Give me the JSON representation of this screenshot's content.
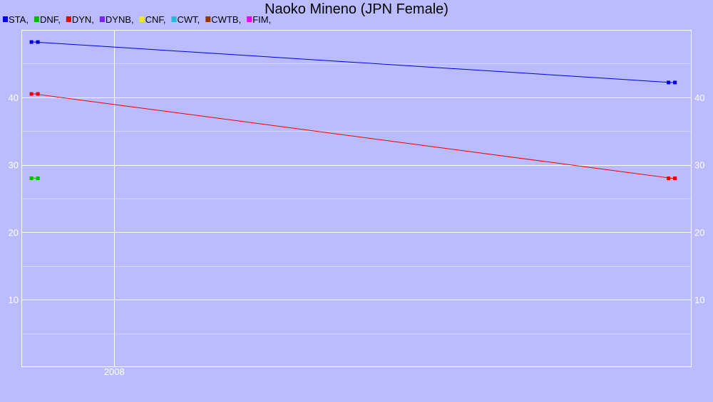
{
  "chart_data": {
    "type": "line",
    "title": "Naoko Mineno (JPN Female)",
    "xlabel": "",
    "ylabel": "",
    "x_ticks": [
      {
        "label": "2008",
        "value": 2008.0
      }
    ],
    "xlim": [
      2007.3,
      2012.35
    ],
    "ylim": [
      0,
      50
    ],
    "y_ticks": [
      10,
      20,
      30,
      40
    ],
    "y_minor_ticks": [
      5,
      15,
      25,
      35,
      45
    ],
    "grid": true,
    "legend_position": "top-left",
    "legend": [
      {
        "label": "STA,",
        "color": "#0000dd"
      },
      {
        "label": "DNF,",
        "color": "#00bb00"
      },
      {
        "label": "DYN,",
        "color": "#ee0000"
      },
      {
        "label": "DYNB,",
        "color": "#7722ee"
      },
      {
        "label": "CNF,",
        "color": "#eeee00"
      },
      {
        "label": "CWT,",
        "color": "#22bbdd"
      },
      {
        "label": "CWTB,",
        "color": "#993300"
      },
      {
        "label": "FIM,",
        "color": "#ee00ee"
      }
    ],
    "series": [
      {
        "name": "STA",
        "color": "#0000dd",
        "points": [
          {
            "x": 2007.4,
            "y": 48.2
          },
          {
            "x": 2012.2,
            "y": 42.2
          }
        ]
      },
      {
        "name": "DNF",
        "color": "#00bb00",
        "points": [
          {
            "x": 2007.4,
            "y": 28.0
          }
        ]
      },
      {
        "name": "DYN",
        "color": "#ee0000",
        "points": [
          {
            "x": 2007.4,
            "y": 40.5
          },
          {
            "x": 2012.2,
            "y": 28.0
          }
        ]
      }
    ]
  }
}
